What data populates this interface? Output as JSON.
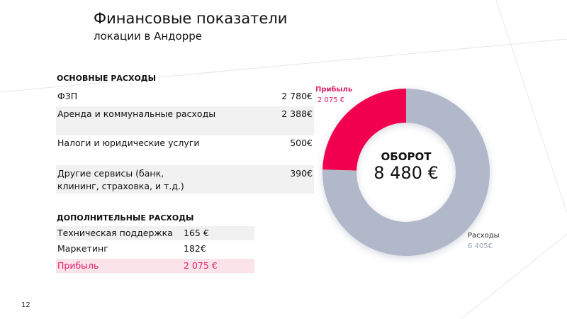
{
  "header": {
    "title": "Финансовые показатели",
    "subtitle": "локации в Андорре"
  },
  "main_expenses": {
    "heading": "ОСНОВНЫЕ РАСХОДЫ",
    "items": [
      {
        "label": "ФЗП",
        "value": "2 780€"
      },
      {
        "label": "Аренда и  коммунальные расходы",
        "value": "2 388€"
      },
      {
        "label": "Налоги и юридические   услуги",
        "value": "500€"
      },
      {
        "label": "Другие сервисы (банк,",
        "label2": "клининг, страховка, и т.д.)",
        "value": "390€"
      }
    ]
  },
  "extra_expenses": {
    "heading": "ДОПОЛНИТЕЛЬНЫЕ РАСХОДЫ",
    "items": [
      {
        "label": "Техническая поддержка",
        "value": "165 €"
      },
      {
        "label": "Маркетинг",
        "value": "182€"
      }
    ],
    "profit": {
      "label": "Прибыль",
      "value": "2 075 €"
    }
  },
  "chart_data": {
    "type": "pie",
    "title": "ОБОРОТ",
    "total_label": "8 480 €",
    "total": 8480,
    "slices": [
      {
        "name": "Прибыль",
        "value": 2075,
        "value_label": "2 075 €",
        "color": "#f0064f"
      },
      {
        "name": "Расходы",
        "value": 6405,
        "value_label": "6 405€",
        "color": "#b0b8ca"
      }
    ]
  },
  "page_number": "12"
}
